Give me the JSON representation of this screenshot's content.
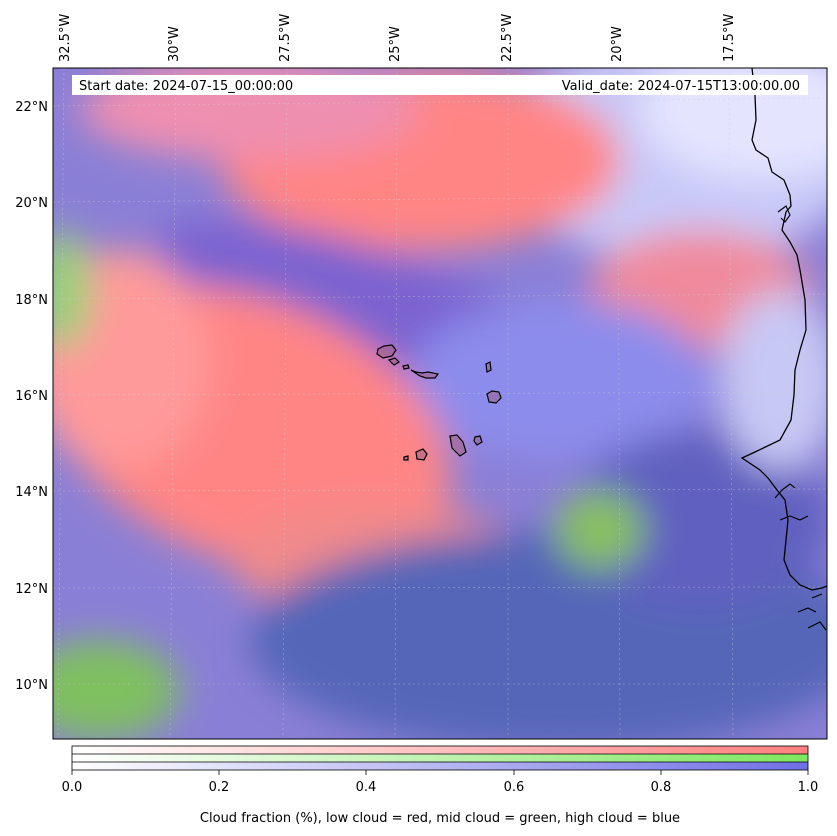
{
  "map": {
    "start_date_label": "Start date: 2024-07-15_00:00:00",
    "valid_date_label": "Valid_date: 2024-07-15T13:00:00.00",
    "lon_labels": [
      "32.5°W",
      "30°W",
      "27.5°W",
      "25°W",
      "22.5°W",
      "20°W",
      "17.5°W"
    ],
    "lat_labels": [
      "22°N",
      "20°N",
      "18°N",
      "16°N",
      "14°N",
      "12°N",
      "10°N"
    ],
    "colors": {
      "low_cloud": "#ff8080",
      "mid_cloud": "#80e060",
      "high_cloud": "#7070e8",
      "coastline": "#000000"
    }
  },
  "colorbar": {
    "ticks": [
      "0.0",
      "0.2",
      "0.4",
      "0.6",
      "0.8",
      "1.0"
    ],
    "caption": "Cloud fraction (%), low cloud = red, mid cloud = green, high cloud = blue"
  }
}
